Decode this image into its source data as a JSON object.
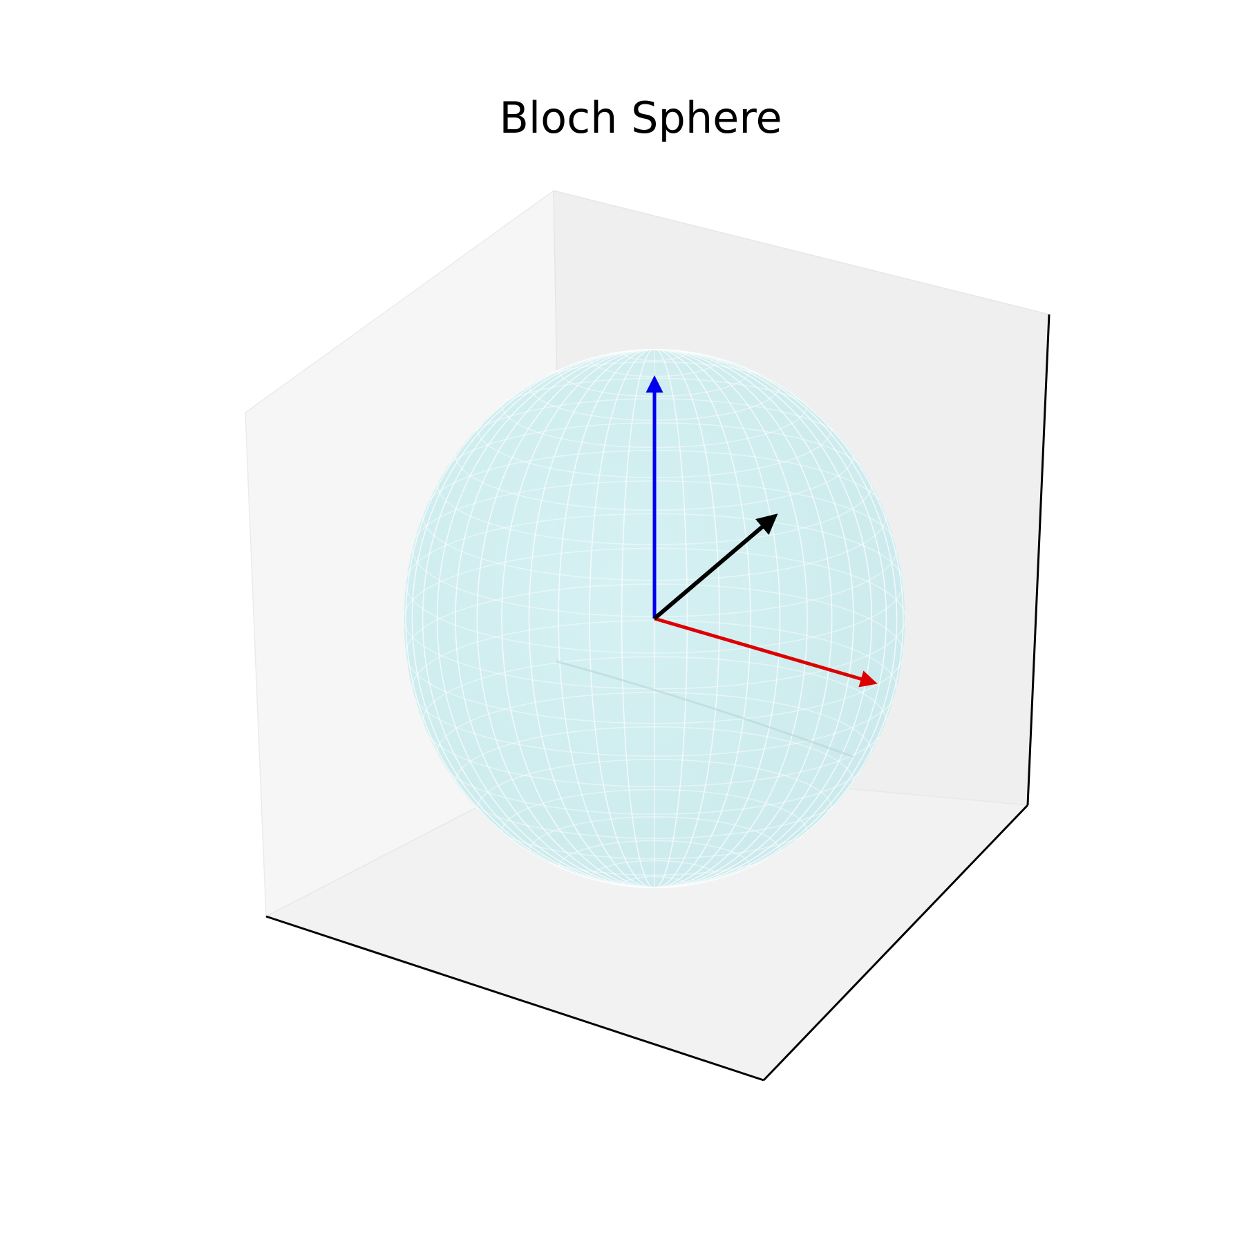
{
  "chart_data": {
    "type": "3d-surface",
    "title": "Bloch Sphere",
    "xlabel": "",
    "ylabel": "",
    "zlabel": "",
    "grid": false,
    "ticks": false,
    "sphere": {
      "radius": 1,
      "center": [
        0,
        0,
        0
      ],
      "color": "#c8eef0",
      "mesh_color": "#ffffff"
    },
    "vectors": [
      {
        "id": "x-axis-vector",
        "from": [
          0,
          0,
          0
        ],
        "to": [
          1,
          0,
          0
        ],
        "color": "#dd0000"
      },
      {
        "id": "z-axis-vector",
        "from": [
          0,
          0,
          0
        ],
        "to": [
          0,
          0,
          1
        ],
        "color": "#0000ee"
      },
      {
        "id": "state-vector",
        "from": [
          0,
          0,
          0
        ],
        "to": [
          0.7,
          0.7,
          0.0
        ],
        "color": "#000000"
      }
    ]
  }
}
